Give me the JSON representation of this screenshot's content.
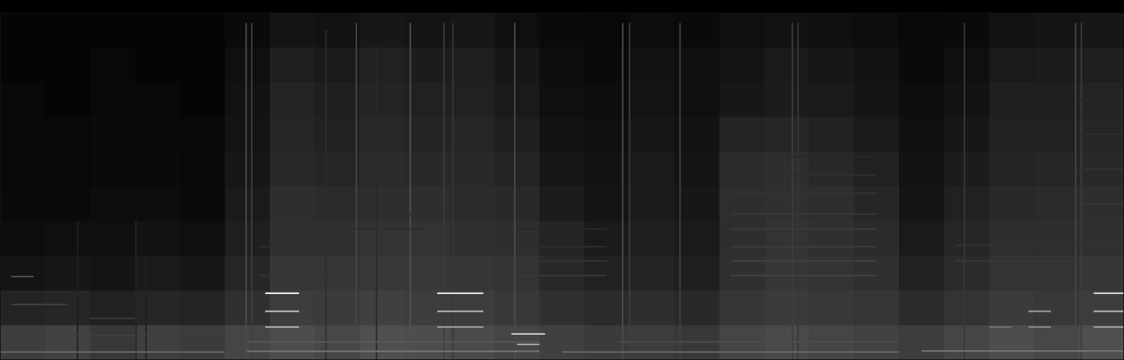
{
  "chart_data": {
    "type": "spectrogram",
    "tick_labels": false,
    "grid": false,
    "xlim": [
      0,
      100
    ],
    "ylim": [
      0,
      100
    ],
    "color_range": [
      0,
      100
    ],
    "cells": [
      [
        2,
        2,
        2,
        2,
        2,
        4,
        8,
        7,
        9,
        8,
        9,
        6,
        4,
        3,
        5,
        4,
        6,
        7,
        6,
        5,
        3,
        4,
        7,
        8,
        9
      ],
      [
        2,
        2,
        3,
        2,
        2,
        6,
        12,
        10,
        13,
        11,
        12,
        9,
        5,
        4,
        7,
        6,
        8,
        10,
        9,
        7,
        4,
        6,
        10,
        11,
        12
      ],
      [
        3,
        2,
        3,
        3,
        2,
        7,
        14,
        12,
        14,
        13,
        13,
        10,
        6,
        5,
        8,
        6,
        9,
        11,
        10,
        8,
        5,
        7,
        12,
        12,
        14
      ],
      [
        3,
        3,
        4,
        3,
        3,
        8,
        15,
        13,
        16,
        14,
        15,
        12,
        7,
        6,
        9,
        7,
        14,
        15,
        13,
        10,
        6,
        9,
        13,
        13,
        15
      ],
      [
        3,
        3,
        4,
        4,
        3,
        9,
        16,
        15,
        17,
        16,
        16,
        14,
        9,
        7,
        10,
        8,
        17,
        18,
        16,
        13,
        7,
        11,
        14,
        15,
        16
      ],
      [
        4,
        4,
        5,
        5,
        4,
        10,
        18,
        17,
        18,
        18,
        17,
        16,
        11,
        8,
        11,
        9,
        18,
        19,
        18,
        15,
        8,
        13,
        16,
        17,
        18
      ],
      [
        5,
        6,
        6,
        7,
        6,
        12,
        19,
        19,
        20,
        20,
        19,
        18,
        14,
        10,
        12,
        10,
        18,
        20,
        19,
        17,
        10,
        15,
        18,
        18,
        19
      ],
      [
        8,
        9,
        8,
        10,
        9,
        15,
        21,
        21,
        22,
        22,
        21,
        20,
        16,
        13,
        14,
        12,
        19,
        21,
        20,
        19,
        13,
        17,
        20,
        20,
        21
      ],
      [
        14,
        15,
        13,
        15,
        14,
        19,
        24,
        23,
        25,
        24,
        24,
        22,
        19,
        17,
        18,
        16,
        21,
        23,
        22,
        21,
        17,
        20,
        23,
        22,
        24
      ],
      [
        24,
        26,
        22,
        25,
        23,
        27,
        30,
        28,
        31,
        30,
        29,
        27,
        25,
        23,
        24,
        22,
        27,
        29,
        27,
        26,
        24,
        27,
        30,
        28,
        31
      ]
    ],
    "transients": [
      {
        "x": 21.9,
        "top": 97,
        "level": 30
      },
      {
        "x": 22.4,
        "top": 97,
        "level": 25
      },
      {
        "x": 31.7,
        "top": 97,
        "level": 28
      },
      {
        "x": 36.5,
        "top": 97,
        "level": 32
      },
      {
        "x": 39.5,
        "top": 97,
        "level": 24
      },
      {
        "x": 40.3,
        "top": 97,
        "level": 22
      },
      {
        "x": 45.8,
        "top": 97,
        "level": 30
      },
      {
        "x": 55.4,
        "top": 97,
        "level": 30
      },
      {
        "x": 56.0,
        "top": 97,
        "level": 24
      },
      {
        "x": 60.5,
        "top": 97,
        "level": 26
      },
      {
        "x": 70.5,
        "top": 97,
        "level": 24
      },
      {
        "x": 71.0,
        "top": 97,
        "level": 22
      },
      {
        "x": 85.8,
        "top": 97,
        "level": 22
      },
      {
        "x": 95.7,
        "top": 97,
        "level": 28
      },
      {
        "x": 96.2,
        "top": 97,
        "level": 24
      },
      {
        "x": 12.1,
        "top": 40,
        "level": 14
      },
      {
        "x": 6.9,
        "top": 40,
        "level": 12
      },
      {
        "x": 13.0,
        "top": 30,
        "level": 12
      },
      {
        "x": 29.0,
        "top": 95,
        "level": 18
      },
      {
        "x": 33.5,
        "top": 90,
        "level": 16
      }
    ],
    "harmonics": [
      {
        "x": [
          23.6,
          26.6
        ],
        "y": 19.2,
        "level": 95
      },
      {
        "x": [
          23.6,
          26.6
        ],
        "y": 14.0,
        "level": 75
      },
      {
        "x": [
          23.6,
          26.6
        ],
        "y": 9.5,
        "level": 70
      },
      {
        "x": [
          38.9,
          43.0
        ],
        "y": 19.2,
        "level": 90
      },
      {
        "x": [
          38.9,
          43.0
        ],
        "y": 14.0,
        "level": 70
      },
      {
        "x": [
          38.9,
          43.0
        ],
        "y": 9.5,
        "level": 65
      },
      {
        "x": [
          45.5,
          48.5
        ],
        "y": 7.5,
        "level": 80
      },
      {
        "x": [
          46.0,
          48.0
        ],
        "y": 4.5,
        "level": 70
      },
      {
        "x": [
          97.3,
          100
        ],
        "y": 19.2,
        "level": 85
      },
      {
        "x": [
          97.3,
          100
        ],
        "y": 14.0,
        "level": 70
      },
      {
        "x": [
          97.3,
          100
        ],
        "y": 9.5,
        "level": 65
      },
      {
        "x": [
          91.5,
          93.5
        ],
        "y": 14.0,
        "level": 60
      },
      {
        "x": [
          91.5,
          93.5
        ],
        "y": 9.5,
        "level": 55
      },
      {
        "x": [
          88.0,
          90.0
        ],
        "y": 9.5,
        "level": 45
      },
      {
        "x": [
          0,
          20
        ],
        "y": 2.3,
        "level": 40
      },
      {
        "x": [
          22,
          48
        ],
        "y": 2.5,
        "level": 45
      },
      {
        "x": [
          50,
          80
        ],
        "y": 2.3,
        "level": 40
      },
      {
        "x": [
          82,
          100
        ],
        "y": 2.6,
        "level": 45
      },
      {
        "x": [
          22,
          48
        ],
        "y": 5.2,
        "level": 35
      },
      {
        "x": [
          55,
          80
        ],
        "y": 5.2,
        "level": 30
      },
      {
        "x": [
          46,
          54
        ],
        "y": 24.3,
        "level": 22
      },
      {
        "x": [
          46,
          54
        ],
        "y": 28.5,
        "level": 20
      },
      {
        "x": [
          46,
          54
        ],
        "y": 32.6,
        "level": 18
      },
      {
        "x": [
          46,
          54
        ],
        "y": 37.7,
        "level": 16
      },
      {
        "x": [
          65,
          78
        ],
        "y": 24.3,
        "level": 26
      },
      {
        "x": [
          65,
          78
        ],
        "y": 28.5,
        "level": 25
      },
      {
        "x": [
          65,
          78
        ],
        "y": 32.6,
        "level": 24
      },
      {
        "x": [
          65,
          78
        ],
        "y": 37.7,
        "level": 23
      },
      {
        "x": [
          65,
          78
        ],
        "y": 42.0,
        "level": 22
      },
      {
        "x": [
          65,
          78
        ],
        "y": 48.0,
        "level": 20
      },
      {
        "x": [
          68,
          78
        ],
        "y": 53.2,
        "level": 18
      },
      {
        "x": [
          70,
          78
        ],
        "y": 58.5,
        "level": 16
      },
      {
        "x": [
          23,
          30
        ],
        "y": 24.3,
        "level": 20
      },
      {
        "x": [
          23,
          30
        ],
        "y": 32.6,
        "level": 18
      },
      {
        "x": [
          30,
          38
        ],
        "y": 37.7,
        "level": 18
      },
      {
        "x": [
          34,
          44
        ],
        "y": 42.0,
        "level": 18
      },
      {
        "x": [
          85,
          100
        ],
        "y": 28.5,
        "level": 22
      },
      {
        "x": [
          85,
          100
        ],
        "y": 33,
        "level": 20
      },
      {
        "x": [
          96,
          100
        ],
        "y": 45,
        "level": 22
      },
      {
        "x": [
          96,
          100
        ],
        "y": 55,
        "level": 20
      },
      {
        "x": [
          96,
          100
        ],
        "y": 65,
        "level": 18
      },
      {
        "x": [
          96,
          100
        ],
        "y": 75,
        "level": 16
      },
      {
        "x": [
          1,
          3
        ],
        "y": 24.0,
        "level": 30
      },
      {
        "x": [
          1,
          6
        ],
        "y": 16,
        "level": 25
      },
      {
        "x": [
          8,
          12
        ],
        "y": 12,
        "level": 22
      },
      {
        "x": [
          1,
          20
        ],
        "y": 7,
        "level": 25
      }
    ]
  }
}
